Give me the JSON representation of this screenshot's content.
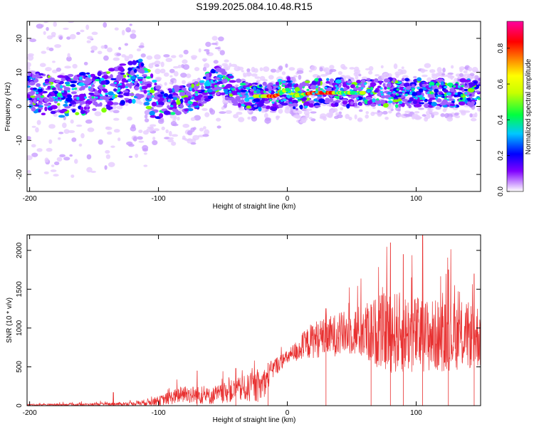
{
  "title": "S199.2025.084.10.48.R15",
  "chart_data": [
    {
      "type": "heatmap",
      "xlabel": "Height of straight line (km)",
      "ylabel": "Frequency (Hz)",
      "xlim": [
        -202,
        150
      ],
      "ylim": [
        -25,
        25
      ],
      "xticks": [
        -200,
        -100,
        0,
        100
      ],
      "xtick_labels": [
        "-200",
        "-100",
        "0",
        "100"
      ],
      "yticks": [
        -20,
        -10,
        0,
        10,
        20
      ],
      "ytick_labels": [
        "-20",
        "-10",
        "0",
        "10",
        "20"
      ],
      "colorbar": {
        "label": "Normalized spectral amplitude",
        "range": [
          0,
          0.95
        ],
        "ticks": [
          0.0,
          0.2,
          0.4,
          0.6,
          0.8
        ],
        "tick_labels": [
          "0.0",
          "0.2",
          "0.4",
          "0.6",
          "0.8"
        ],
        "colors": [
          "#ffffff",
          "#8000ff",
          "#0000ff",
          "#00c8ff",
          "#00ff40",
          "#c8ff00",
          "#ffff00",
          "#ff8000",
          "#ff0000",
          "#ff00a0"
        ]
      },
      "ridge": [
        {
          "x": -195,
          "y": 4
        },
        {
          "x": -175,
          "y": 3
        },
        {
          "x": -150,
          "y": 4
        },
        {
          "x": -130,
          "y": 6
        },
        {
          "x": -115,
          "y": 8
        },
        {
          "x": -100,
          "y": 1
        },
        {
          "x": -85,
          "y": 2
        },
        {
          "x": -70,
          "y": 3
        },
        {
          "x": -55,
          "y": 8
        },
        {
          "x": -40,
          "y": 4
        },
        {
          "x": -25,
          "y": 3
        },
        {
          "x": -10,
          "y": 3
        },
        {
          "x": 0,
          "y": 5
        },
        {
          "x": 5,
          "y": 3
        },
        {
          "x": 20,
          "y": 4
        },
        {
          "x": 40,
          "y": 4
        },
        {
          "x": 60,
          "y": 4
        },
        {
          "x": 80,
          "y": 4
        },
        {
          "x": 100,
          "y": 4
        },
        {
          "x": 120,
          "y": 4
        },
        {
          "x": 145,
          "y": 4
        }
      ]
    },
    {
      "type": "line",
      "xlabel": "Height of straight line (km)",
      "ylabel": "SNR (10 * v/v)",
      "xlim": [
        -202,
        150
      ],
      "ylim": [
        0,
        2200
      ],
      "xticks": [
        -200,
        -100,
        0,
        100
      ],
      "xtick_labels": [
        "-200",
        "-100",
        "0",
        "100"
      ],
      "yticks": [
        0,
        500,
        1000,
        1500,
        2000
      ],
      "ytick_labels": [
        "0",
        "500",
        "1000",
        "1500",
        "2000"
      ],
      "color": "#e83030",
      "envelope": [
        {
          "x": -202,
          "base": 10,
          "amp": 20
        },
        {
          "x": -150,
          "base": 15,
          "amp": 30
        },
        {
          "x": -120,
          "base": 25,
          "amp": 40
        },
        {
          "x": -100,
          "base": 60,
          "amp": 100
        },
        {
          "x": -80,
          "base": 150,
          "amp": 200
        },
        {
          "x": -60,
          "base": 120,
          "amp": 180
        },
        {
          "x": -40,
          "base": 200,
          "amp": 250
        },
        {
          "x": -20,
          "base": 250,
          "amp": 350
        },
        {
          "x": -10,
          "base": 500,
          "amp": 200
        },
        {
          "x": 0,
          "base": 620,
          "amp": 150
        },
        {
          "x": 20,
          "base": 850,
          "amp": 400
        },
        {
          "x": 50,
          "base": 950,
          "amp": 500
        },
        {
          "x": 80,
          "base": 950,
          "amp": 900
        },
        {
          "x": 110,
          "base": 900,
          "amp": 800
        },
        {
          "x": 150,
          "base": 900,
          "amp": 700
        }
      ],
      "peaks": [
        {
          "x": -135,
          "y": 170
        },
        {
          "x": -70,
          "y": 450
        },
        {
          "x": -40,
          "y": 480
        },
        {
          "x": -15,
          "y": 550
        },
        {
          "x": 30,
          "y": 1250
        },
        {
          "x": 65,
          "y": 1300
        },
        {
          "x": 80,
          "y": 2100
        },
        {
          "x": 90,
          "y": 1950
        },
        {
          "x": 105,
          "y": 2200
        },
        {
          "x": 125,
          "y": 1750
        },
        {
          "x": 145,
          "y": 1700
        }
      ]
    }
  ]
}
